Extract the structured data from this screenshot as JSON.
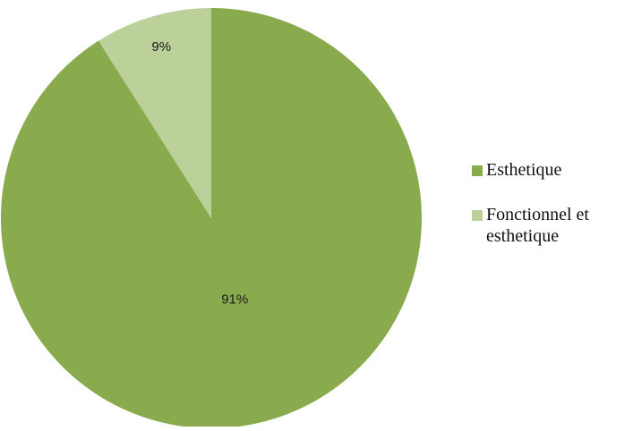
{
  "chart_data": {
    "type": "pie",
    "categories": [
      "Esthetique",
      "Fonctionnel et esthetique"
    ],
    "values": [
      91,
      9
    ],
    "data_labels": [
      "91%",
      "9%"
    ],
    "colors": [
      "#8aaa4e",
      "#bcd19a"
    ],
    "start_angle_deg": 0,
    "direction": "clockwise",
    "legend_position": "right"
  },
  "legend": {
    "items": [
      {
        "label": "Esthetique",
        "color": "#8aaa4e"
      },
      {
        "label": "Fonctionnel et esthetique",
        "color": "#bcd19a"
      }
    ]
  }
}
